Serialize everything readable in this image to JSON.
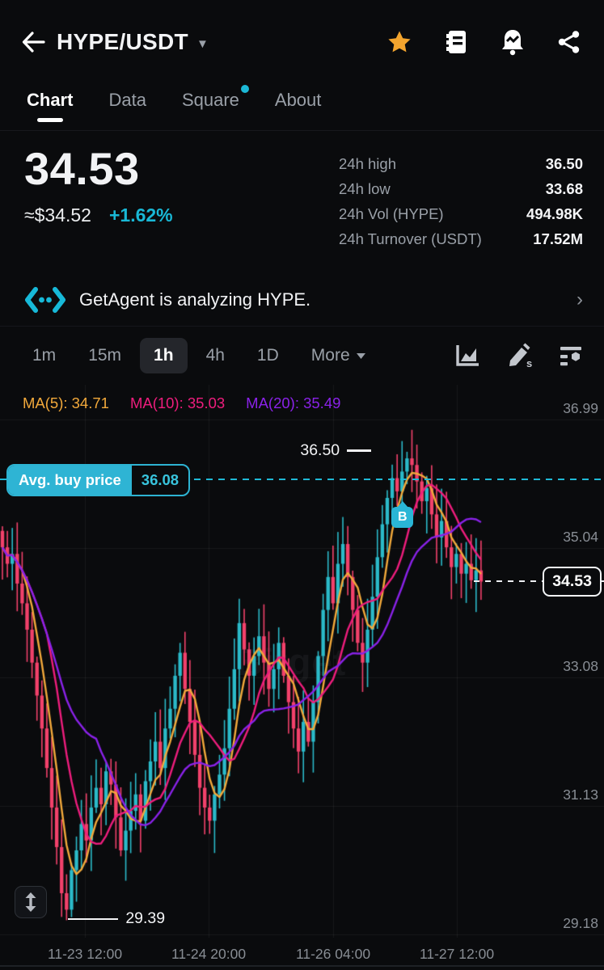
{
  "header": {
    "title": "HYPE/USDT"
  },
  "tabs": [
    {
      "label": "Chart"
    },
    {
      "label": "Data"
    },
    {
      "label": "Square"
    },
    {
      "label": "About"
    }
  ],
  "price": {
    "last": "34.53",
    "fiat": "≈$34.52",
    "change": "+1.62%"
  },
  "stats": [
    {
      "label": "24h high",
      "value": "36.50"
    },
    {
      "label": "24h low",
      "value": "33.68"
    },
    {
      "label": "24h Vol (HYPE)",
      "value": "494.98K"
    },
    {
      "label": "24h Turnover (USDT)",
      "value": "17.52M"
    }
  ],
  "banner": {
    "text": "GetAgent is analyzing HYPE."
  },
  "toolbar": {
    "timeframes": [
      "1m",
      "15m",
      "1h",
      "4h",
      "1D"
    ],
    "selected": "1h",
    "more_label": "More"
  },
  "chart": {
    "ma_labels": [
      "MA(5): 34.71",
      "MA(10): 35.03",
      "MA(20): 35.49"
    ],
    "watermark": "Bitget",
    "avg_buy_label": "Avg. buy price",
    "avg_buy_value": "36.08",
    "current_price_label": "34.53",
    "high_annotation": "36.50",
    "low_annotation": "29.39",
    "buy_marker_label": "B",
    "y_ticks": [
      "36.99",
      "35.04",
      "33.08",
      "31.13",
      "29.18"
    ],
    "x_ticks": [
      "11-23 12:00",
      "11-24 20:00",
      "11-26 04:00",
      "11-27 12:00"
    ]
  },
  "chart_data": {
    "type": "candlestick",
    "symbol": "HYPE/USDT",
    "interval": "1h",
    "first_open": 35.3,
    "closes": [
      35.05,
      34.8,
      34.95,
      34.5,
      34.2,
      33.8,
      33.3,
      32.8,
      32.3,
      31.7,
      31.1,
      30.5,
      29.8,
      29.55,
      30.15,
      30.45,
      30.85,
      30.6,
      31.1,
      31.4,
      31.15,
      31.65,
      31.45,
      30.95,
      30.45,
      30.75,
      31.05,
      31.3,
      30.9,
      31.5,
      31.8,
      32.1,
      31.7,
      32.3,
      32.6,
      33.1,
      33.45,
      32.9,
      32.4,
      31.9,
      31.4,
      31.1,
      30.9,
      31.3,
      31.6,
      32.0,
      32.6,
      33.2,
      33.9,
      33.5,
      33.1,
      33.4,
      33.7,
      33.3,
      32.9,
      33.2,
      33.6,
      33.1,
      32.7,
      32.3,
      31.95,
      32.4,
      32.1,
      32.7,
      33.4,
      34.1,
      34.6,
      34.2,
      34.8,
      35.1,
      34.6,
      34.1,
      33.6,
      33.3,
      33.8,
      34.3,
      34.9,
      35.4,
      35.8,
      36.1,
      35.9,
      36.2,
      36.4,
      36.3,
      36.05,
      35.75,
      35.95,
      35.55,
      35.2,
      35.45,
      35.05,
      34.75,
      34.95,
      34.65,
      34.8,
      34.55,
      34.7,
      34.53
    ],
    "session_low": {
      "index": 13,
      "value": 29.39
    },
    "session_high": {
      "index": 82,
      "value": 36.5
    },
    "last_price": 34.53,
    "avg_buy_price": 36.08,
    "y_axis_ticks": [
      36.99,
      35.04,
      33.08,
      31.13,
      29.18
    ],
    "x_axis_ticks": [
      "11-23 12:00",
      "11-24 20:00",
      "11-26 04:00",
      "11-27 12:00"
    ],
    "moving_averages": [
      {
        "period": 5,
        "value": 34.71,
        "color": "#f2a93b"
      },
      {
        "period": 10,
        "value": 35.03,
        "color": "#ee1d7d"
      },
      {
        "period": 20,
        "value": 35.49,
        "color": "#8a22e8"
      }
    ],
    "up_color": "#2bbac9",
    "down_color": "#f2416b",
    "buy_marker": {
      "label": "B",
      "index": 81,
      "price": 35.5
    }
  }
}
